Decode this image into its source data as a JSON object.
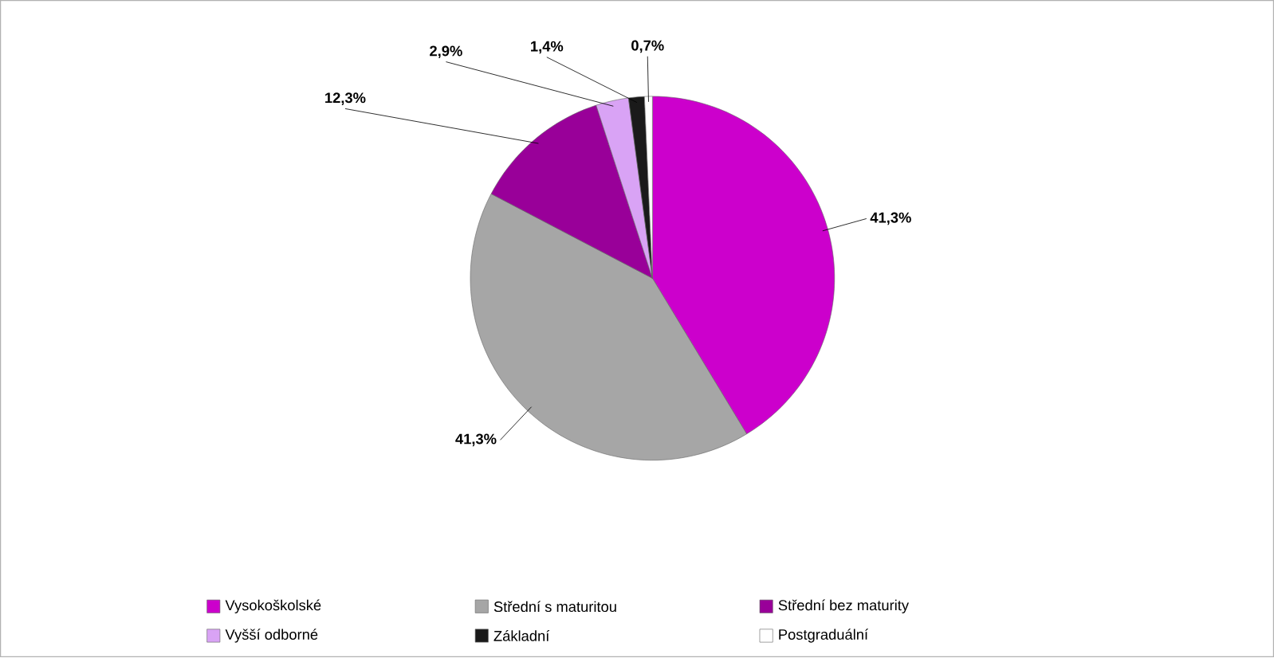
{
  "chart_data": {
    "type": "pie",
    "categories": [
      "Vysokoškolské",
      "Střední s maturitou",
      "Střední bez maturity",
      "Vyšší odborné",
      "Základní",
      "Postgraduální"
    ],
    "values": [
      41.3,
      41.3,
      12.3,
      2.9,
      1.4,
      0.7
    ],
    "value_labels": [
      "41,3%",
      "41,3%",
      "12,3%",
      "2,9%",
      "1,4%",
      "0,7%"
    ],
    "colors": [
      "#cc00cc",
      "#a6a6a6",
      "#990099",
      "#d9a3f5",
      "#1a1a1a",
      "#ffffff"
    ],
    "legend": "bottom"
  }
}
